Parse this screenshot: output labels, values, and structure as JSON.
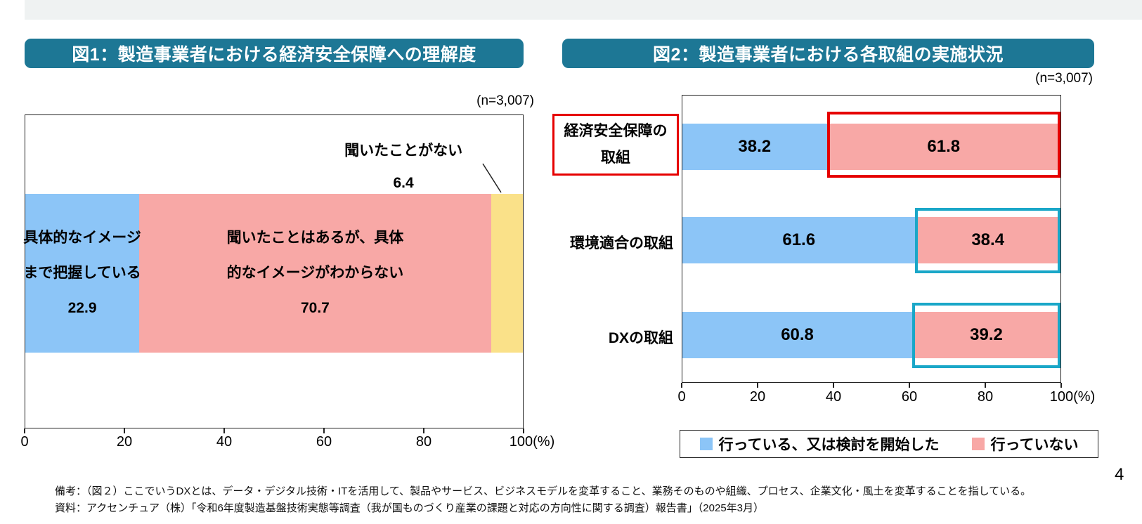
{
  "page": {
    "number": "4"
  },
  "colors": {
    "title_bar": "#1d7795",
    "bar_blue": "#8cc5f7",
    "bar_pink": "#f8a8a6",
    "bar_yellow": "#fae189",
    "highlight_red": "#e60000",
    "highlight_teal": "#1aa7c8",
    "top_strip": "#eff2f2"
  },
  "fig1": {
    "title": "図1：製造事業者における経済安全保障への理解度",
    "sample": "(n=3,007)",
    "segments": [
      {
        "name": "具体的なイメージまで把握している",
        "label_lines": [
          "具体的なイメージ",
          "まで把握している"
        ],
        "value": 22.9
      },
      {
        "name": "聞いたことはあるが、具体的なイメージがわからない",
        "label_lines": [
          "聞いたことはあるが、具体",
          "的なイメージがわからない"
        ],
        "value": 70.7
      },
      {
        "name": "聞いたことがない",
        "value": 6.4
      }
    ],
    "callout": {
      "label": "聞いたことがない",
      "value": 6.4
    },
    "axis": {
      "ticks": [
        "0",
        "20",
        "40",
        "60",
        "80",
        "100(%)"
      ]
    }
  },
  "fig2": {
    "title": "図2：製造事業者における各取組の実施状況",
    "sample": "(n=3,007)",
    "rows": [
      {
        "category_lines": [
          "経済安全保障の",
          "取組"
        ],
        "done": 38.2,
        "not_done": 61.8
      },
      {
        "category_lines": [
          "環境適合の取組"
        ],
        "done": 61.6,
        "not_done": 38.4
      },
      {
        "category_lines": [
          "DXの取組"
        ],
        "done": 60.8,
        "not_done": 39.2
      }
    ],
    "axis": {
      "ticks": [
        "0",
        "20",
        "40",
        "60",
        "80",
        "100(%)"
      ]
    },
    "legend": [
      {
        "label": "行っている、又は検討を開始した",
        "color": "#8cc5f7"
      },
      {
        "label": "行っていない",
        "color": "#f8a8a6"
      }
    ]
  },
  "footer": {
    "line1": "備考：（図２）ここでいうDXとは、データ・デジタル技術・ITを活用して、製品やサービス、ビジネスモデルを変革すること、業務そのものや組織、プロセス、企業文化・風土を変革することを指している。",
    "line2": "資料：アクセンチュア（株）「令和6年度製造基盤技術実態等調査（我が国ものづくり産業の課題と対応の方向性に関する調査）報告書」（2025年3月）"
  },
  "chart_data": [
    {
      "type": "bar",
      "title": "図1：製造事業者における経済安全保障への理解度",
      "subtitle": "(n=3,007)",
      "orientation": "horizontal-stacked",
      "categories": [
        "経済安全保障への理解度"
      ],
      "series": [
        {
          "name": "具体的なイメージまで把握している",
          "values": [
            22.9
          ]
        },
        {
          "name": "聞いたことはあるが、具体的なイメージがわからない",
          "values": [
            70.7
          ]
        },
        {
          "name": "聞いたことがない",
          "values": [
            6.4
          ]
        }
      ],
      "xlabel": "(%)",
      "ylabel": "",
      "xlim": [
        0,
        100
      ],
      "xticks": [
        0,
        20,
        40,
        60,
        80,
        100
      ],
      "grid": false,
      "legend_position": "none (labels on segments)"
    },
    {
      "type": "bar",
      "title": "図2：製造事業者における各取組の実施状況",
      "subtitle": "(n=3,007)",
      "orientation": "horizontal-stacked",
      "categories": [
        "経済安全保障の取組",
        "環境適合の取組",
        "DXの取組"
      ],
      "series": [
        {
          "name": "行っている、又は検討を開始した",
          "values": [
            38.2,
            61.6,
            60.8
          ]
        },
        {
          "name": "行っていない",
          "values": [
            61.8,
            38.4,
            39.2
          ]
        }
      ],
      "xlabel": "(%)",
      "ylabel": "",
      "xlim": [
        0,
        100
      ],
      "xticks": [
        0,
        20,
        40,
        60,
        80,
        100
      ],
      "grid": false,
      "legend_position": "bottom",
      "annotations": [
        "経済安全保障の取組の行っていない(61.8)とカテゴリ名を赤枠で強調",
        "環境適合の取組(38.4)とDXの取組(39.2)の行っていないを水色枠で強調"
      ]
    }
  ]
}
